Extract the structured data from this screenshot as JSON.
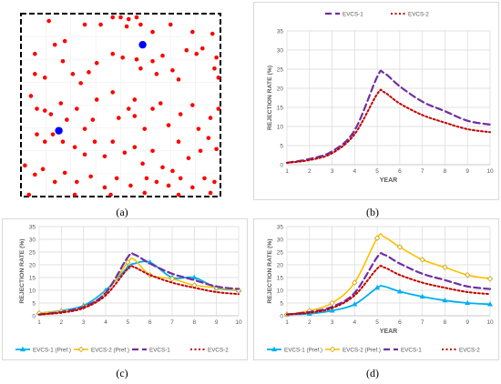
{
  "panel_labels": [
    "(a)",
    "(b)",
    "(c)",
    "(d)"
  ],
  "colors": {
    "evcs1": "#7030a0",
    "evcs2": "#c00000",
    "evcs1_pref": "#00b0f0",
    "evcs2_pref": "#ffc000",
    "map_red": "#ff0000",
    "map_blue": "#0000ff",
    "grid": "#d9d9d9",
    "text": "#595959"
  },
  "map": {
    "red_points": [
      [
        0.14,
        0.04
      ],
      [
        0.32,
        0.06
      ],
      [
        0.4,
        0.06
      ],
      [
        0.46,
        0.02
      ],
      [
        0.5,
        0.02
      ],
      [
        0.54,
        0.03
      ],
      [
        0.58,
        0.02
      ],
      [
        0.6,
        0.06
      ],
      [
        0.53,
        0.07
      ],
      [
        0.66,
        0.1
      ],
      [
        0.75,
        0.06
      ],
      [
        0.86,
        0.1
      ],
      [
        0.96,
        0.11
      ],
      [
        0.07,
        0.22
      ],
      [
        0.17,
        0.17
      ],
      [
        0.22,
        0.15
      ],
      [
        0.07,
        0.33
      ],
      [
        0.12,
        0.35
      ],
      [
        0.21,
        0.26
      ],
      [
        0.26,
        0.33
      ],
      [
        0.3,
        0.38
      ],
      [
        0.34,
        0.32
      ],
      [
        0.38,
        0.27
      ],
      [
        0.46,
        0.22
      ],
      [
        0.51,
        0.24
      ],
      [
        0.58,
        0.25
      ],
      [
        0.6,
        0.3
      ],
      [
        0.66,
        0.26
      ],
      [
        0.68,
        0.33
      ],
      [
        0.71,
        0.23
      ],
      [
        0.76,
        0.31
      ],
      [
        0.79,
        0.36
      ],
      [
        0.83,
        0.2
      ],
      [
        0.88,
        0.22
      ],
      [
        0.91,
        0.19
      ],
      [
        0.98,
        0.24
      ],
      [
        0.97,
        0.3
      ],
      [
        0.99,
        0.35
      ],
      [
        0.05,
        0.45
      ],
      [
        0.08,
        0.52
      ],
      [
        0.12,
        0.53
      ],
      [
        0.15,
        0.55
      ],
      [
        0.2,
        0.49
      ],
      [
        0.23,
        0.58
      ],
      [
        0.28,
        0.52
      ],
      [
        0.32,
        0.63
      ],
      [
        0.36,
        0.58
      ],
      [
        0.38,
        0.47
      ],
      [
        0.46,
        0.43
      ],
      [
        0.49,
        0.57
      ],
      [
        0.54,
        0.52
      ],
      [
        0.57,
        0.47
      ],
      [
        0.57,
        0.56
      ],
      [
        0.62,
        0.63
      ],
      [
        0.66,
        0.52
      ],
      [
        0.7,
        0.49
      ],
      [
        0.74,
        0.61
      ],
      [
        0.8,
        0.55
      ],
      [
        0.86,
        0.5
      ],
      [
        0.89,
        0.63
      ],
      [
        0.95,
        0.57
      ],
      [
        0.99,
        0.52
      ],
      [
        0.08,
        0.66
      ],
      [
        0.12,
        0.7
      ],
      [
        0.16,
        0.66
      ],
      [
        0.21,
        0.7
      ],
      [
        0.27,
        0.73
      ],
      [
        0.32,
        0.77
      ],
      [
        0.37,
        0.7
      ],
      [
        0.42,
        0.78
      ],
      [
        0.46,
        0.7
      ],
      [
        0.52,
        0.76
      ],
      [
        0.57,
        0.73
      ],
      [
        0.61,
        0.82
      ],
      [
        0.66,
        0.75
      ],
      [
        0.71,
        0.84
      ],
      [
        0.76,
        0.86
      ],
      [
        0.79,
        0.7
      ],
      [
        0.84,
        0.79
      ],
      [
        0.9,
        0.75
      ],
      [
        0.94,
        0.68
      ],
      [
        0.98,
        0.74
      ],
      [
        0.02,
        0.83
      ],
      [
        0.07,
        0.88
      ],
      [
        0.11,
        0.85
      ],
      [
        0.17,
        0.92
      ],
      [
        0.22,
        0.87
      ],
      [
        0.28,
        0.92
      ],
      [
        0.35,
        0.89
      ],
      [
        0.42,
        0.95
      ],
      [
        0.48,
        0.9
      ],
      [
        0.55,
        0.94
      ],
      [
        0.63,
        0.9
      ],
      [
        0.68,
        0.92
      ],
      [
        0.74,
        0.94
      ],
      [
        0.8,
        0.9
      ],
      [
        0.86,
        0.95
      ],
      [
        0.92,
        0.9
      ],
      [
        0.97,
        0.92
      ],
      [
        0.04,
        0.99
      ],
      [
        0.27,
        0.99
      ],
      [
        0.45,
        0.99
      ],
      [
        0.62,
        0.98
      ],
      [
        0.79,
        0.99
      ],
      [
        0.95,
        0.98
      ]
    ],
    "blue_points": [
      [
        0.61,
        0.17
      ],
      [
        0.19,
        0.64
      ]
    ]
  },
  "legends": {
    "b": [
      "EVCS-1",
      "EVCS-2"
    ],
    "c": [
      "EVCS-1 (Pref.)",
      "EVCS-2 (Pref.)",
      "EVCS-1",
      "EVCS-2"
    ],
    "d": [
      "EVCS-1 (Pref.)",
      "EVCS-2 (Pref.)",
      "EVCS-1",
      "EVCS-2"
    ]
  },
  "chart_data": [
    {
      "panel": "b",
      "type": "line",
      "xlabel": "YEAR",
      "ylabel": "REJECTION RATE (%)",
      "x": [
        1,
        2,
        3,
        4,
        5,
        5.3,
        6,
        7,
        8,
        9,
        10
      ],
      "xticks": [
        1,
        2,
        3,
        4,
        5,
        6,
        7,
        8,
        9,
        10
      ],
      "ylim": [
        0,
        35
      ],
      "yticks": [
        0,
        5,
        10,
        15,
        20,
        25,
        30,
        35
      ],
      "grid": true,
      "legend": "top",
      "series": [
        {
          "name": "EVCS-1",
          "values": [
            0.5,
            1.5,
            3.5,
            9,
            23,
            24,
            20.5,
            16.5,
            14,
            11.5,
            10.5
          ]
        },
        {
          "name": "EVCS-2",
          "values": [
            0.5,
            1.2,
            3,
            8,
            18.5,
            19,
            16,
            13,
            11,
            9.3,
            8.5
          ]
        }
      ]
    },
    {
      "panel": "c",
      "type": "line",
      "xlabel": "",
      "ylabel": "REJECTION RATE (%)",
      "x": [
        1,
        2,
        3,
        4,
        5,
        5.3,
        6,
        7,
        8,
        9,
        10
      ],
      "xticks": [
        1,
        2,
        3,
        4,
        5,
        6,
        7,
        8,
        9,
        10
      ],
      "ylim": [
        0,
        35
      ],
      "yticks": [
        0,
        5,
        10,
        15,
        20,
        25,
        30,
        35
      ],
      "grid": true,
      "legend": "bottom",
      "series": [
        {
          "name": "EVCS-1 (Pref.)",
          "values": [
            1,
            2,
            4,
            10,
            19,
            20.5,
            21,
            15,
            15,
            11,
            10
          ],
          "markers": true
        },
        {
          "name": "EVCS-2 (Pref.)",
          "values": [
            1,
            1.8,
            3.5,
            9,
            21,
            22,
            16,
            14.5,
            12,
            11,
            10
          ],
          "markers": true
        },
        {
          "name": "EVCS-1",
          "values": [
            0.5,
            1.5,
            3.5,
            9,
            23,
            24,
            20.5,
            16.5,
            14,
            11.5,
            10.5
          ]
        },
        {
          "name": "EVCS-2",
          "values": [
            0.5,
            1.2,
            3,
            8,
            18.5,
            19,
            16,
            13,
            11,
            9.3,
            8.5
          ]
        }
      ]
    },
    {
      "panel": "d",
      "type": "line",
      "xlabel": "YEAR",
      "ylabel": "REJECTION RATE (%)",
      "x": [
        1,
        2,
        3,
        4,
        5,
        5.3,
        6,
        7,
        8,
        9,
        10
      ],
      "xticks": [
        1,
        2,
        3,
        4,
        5,
        6,
        7,
        8,
        9,
        10
      ],
      "ylim": [
        0,
        35
      ],
      "yticks": [
        0,
        5,
        10,
        15,
        20,
        25,
        30,
        35
      ],
      "grid": true,
      "legend": "bottom",
      "series": [
        {
          "name": "EVCS-1 (Pref.)",
          "values": [
            0.5,
            0.8,
            2,
            4.5,
            11,
            11.5,
            9.5,
            7.5,
            6,
            5,
            4.5
          ],
          "markers": true
        },
        {
          "name": "EVCS-2 (Pref.)",
          "values": [
            0.5,
            2,
            5,
            13,
            30.5,
            31,
            27,
            22,
            19,
            16,
            14.5
          ],
          "markers": true
        },
        {
          "name": "EVCS-1",
          "values": [
            0.5,
            1.5,
            3.5,
            9,
            23,
            24,
            20.5,
            16.5,
            14,
            11.5,
            10.5
          ]
        },
        {
          "name": "EVCS-2",
          "values": [
            0.5,
            1.2,
            3,
            8,
            18.5,
            19,
            16,
            13,
            11,
            9.3,
            8.5
          ]
        }
      ]
    }
  ]
}
